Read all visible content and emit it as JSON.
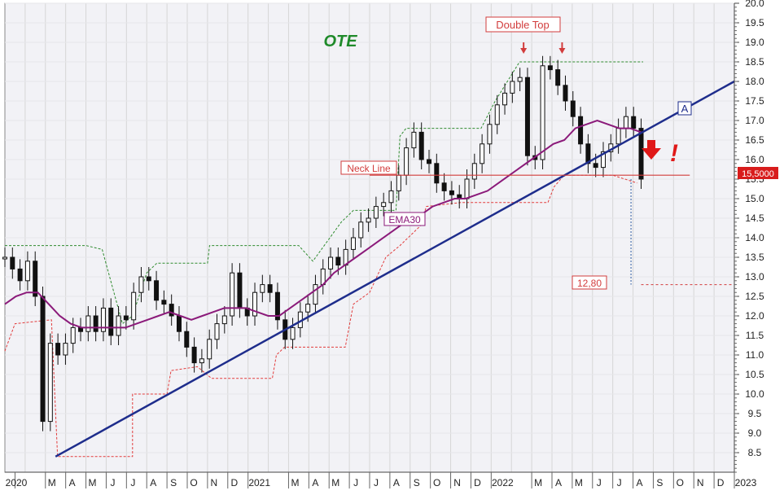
{
  "chart_data": {
    "type": "line",
    "title": "OTE",
    "price_label": "15,5000",
    "y_axis": {
      "range": [
        8.0,
        20.0
      ],
      "ticks": [
        "8.5",
        "9.0",
        "9.5",
        "10.0",
        "10.5",
        "11.0",
        "11.5",
        "12.0",
        "12.5",
        "13.0",
        "13.5",
        "14.0",
        "14.5",
        "15.0",
        "15.5",
        "16.0",
        "16.5",
        "17.0",
        "17.5",
        "18.0",
        "18.5",
        "19.0",
        "19.5",
        "20.0"
      ]
    },
    "x_axis": {
      "labels": [
        "2020",
        "M",
        "A",
        "M",
        "J",
        "J",
        "A",
        "S",
        "O",
        "N",
        "D",
        "2021",
        "M",
        "A",
        "M",
        "J",
        "J",
        "A",
        "S",
        "O",
        "N",
        "D",
        "2022",
        "M",
        "A",
        "M",
        "J",
        "J",
        "A",
        "S",
        "O",
        "N",
        "D",
        "2023"
      ],
      "label_pos": [
        0.5,
        2.0,
        3.0,
        4.0,
        5.0,
        6.0,
        7.0,
        8.0,
        9.0,
        10.0,
        11.0,
        12.0,
        14.0,
        15.0,
        16.0,
        17.0,
        18.0,
        19.0,
        20.0,
        21.0,
        22.0,
        23.0,
        24.0,
        26.0,
        27.0,
        28.0,
        29.0,
        30.0,
        31.0,
        32.0,
        33.0,
        34.0,
        35.0,
        36.0
      ]
    },
    "close": [
      13.5,
      13.2,
      12.9,
      13.4,
      12.5,
      9.3,
      11.3,
      11.0,
      11.3,
      11.7,
      11.6,
      12.0,
      11.6,
      12.2,
      11.5,
      12.0,
      11.9,
      12.6,
      13.0,
      12.9,
      12.4,
      12.3,
      12.0,
      11.6,
      11.2,
      10.8,
      10.9,
      11.4,
      11.8,
      12.0,
      13.1,
      12.2,
      12.0,
      12.6,
      12.8,
      12.6,
      11.9,
      11.4,
      11.7,
      12.1,
      12.3,
      12.8,
      13.2,
      13.5,
      13.3,
      13.7,
      14.0,
      14.4,
      14.5,
      14.8,
      14.9,
      15.2,
      15.6,
      16.3,
      16.7,
      16.0,
      15.9,
      15.4,
      15.2,
      15.1,
      15.0,
      15.5,
      15.9,
      16.4,
      16.9,
      17.4,
      17.7,
      18.0,
      18.1,
      16.1,
      16.0,
      18.4,
      18.3,
      17.9,
      17.5,
      17.1,
      16.4,
      15.9,
      15.8,
      16.2,
      16.4,
      16.8,
      17.1,
      16.8,
      15.5
    ],
    "ema30": [
      12.3,
      12.5,
      12.6,
      12.6,
      12.3,
      12.0,
      11.8,
      11.7,
      11.7,
      11.7,
      11.7,
      11.7,
      11.8,
      11.9,
      12.0,
      12.1,
      12.0,
      11.9,
      12.0,
      12.1,
      12.2,
      12.2,
      12.2,
      12.1,
      12.0,
      12.0,
      12.2,
      12.4,
      12.6,
      12.8,
      13.1,
      13.3,
      13.5,
      13.7,
      13.9,
      14.1,
      14.3,
      14.5,
      14.6,
      14.8,
      14.9,
      15.0,
      15.0,
      15.1,
      15.2,
      15.4,
      15.6,
      15.8,
      16.0,
      16.2,
      16.4,
      16.5,
      16.8,
      16.9,
      17.0,
      16.9,
      16.8,
      16.8,
      16.7
    ],
    "ema30_start": 0.0,
    "upper_channel": [
      [
        0,
        13.8
      ],
      [
        4.0,
        13.8
      ],
      [
        4.0,
        13.8
      ],
      [
        4.8,
        13.7
      ],
      [
        5.8,
        11.8
      ],
      [
        6.3,
        12.0
      ],
      [
        7.0,
        13.1
      ],
      [
        7.5,
        13.35
      ],
      [
        10.0,
        13.35
      ],
      [
        10.1,
        13.8
      ],
      [
        12.8,
        13.8
      ],
      [
        14.5,
        13.8
      ],
      [
        15.2,
        13.4
      ],
      [
        16.6,
        14.4
      ],
      [
        17.2,
        14.7
      ],
      [
        19.3,
        14.7
      ],
      [
        19.5,
        16.6
      ],
      [
        19.8,
        16.8
      ],
      [
        23.5,
        16.8
      ],
      [
        24.2,
        17.5
      ],
      [
        25.4,
        18.5
      ],
      [
        27.2,
        18.5
      ],
      [
        31.5,
        18.5
      ]
    ],
    "lower_channel": [
      [
        0,
        11.1
      ],
      [
        0.5,
        11.8
      ],
      [
        2.3,
        11.9
      ],
      [
        2.6,
        8.4
      ],
      [
        6.3,
        8.4
      ],
      [
        6.3,
        10.0
      ],
      [
        8.0,
        10.0
      ],
      [
        8.2,
        10.6
      ],
      [
        9.5,
        10.7
      ],
      [
        10.2,
        10.4
      ],
      [
        13.2,
        10.4
      ],
      [
        13.4,
        11.0
      ],
      [
        13.8,
        11.2
      ],
      [
        16.8,
        11.2
      ],
      [
        17.2,
        12.3
      ],
      [
        18.0,
        12.6
      ],
      [
        18.8,
        13.5
      ],
      [
        19.5,
        13.8
      ],
      [
        20.5,
        14.3
      ],
      [
        20.8,
        14.8
      ],
      [
        22.5,
        14.9
      ],
      [
        26.8,
        14.9
      ],
      [
        27.1,
        15.3
      ],
      [
        27.6,
        15.6
      ],
      [
        30.0,
        15.6
      ],
      [
        31.2,
        15.4
      ]
    ],
    "trendline": {
      "label": "A",
      "from": [
        2.5,
        8.4
      ],
      "to": [
        36.0,
        18.0
      ]
    },
    "neckline": {
      "label": "Neck Line",
      "value": 15.6,
      "from": 18.0,
      "to": 33.8
    },
    "ema_label": "EMA30",
    "double_top": {
      "label": "Double Top",
      "peaks": [
        25.6,
        27.5
      ]
    },
    "target": {
      "label": "12,80",
      "value": 12.8,
      "from": 31.4,
      "to": 35.9
    },
    "signal": {
      "icon": "down-arrow-icon",
      "mark": "!"
    },
    "colors": {
      "ema": "#8b1a7a",
      "trend": "#1e2d8c",
      "neckline": "#d23c3c",
      "channel_up": "#2f8b2f",
      "channel_dn": "#e23c3c",
      "title": "#1f8a2a",
      "grid": "#d6d6d6",
      "candle": "#111111",
      "bg": "#f2f2f6"
    }
  }
}
